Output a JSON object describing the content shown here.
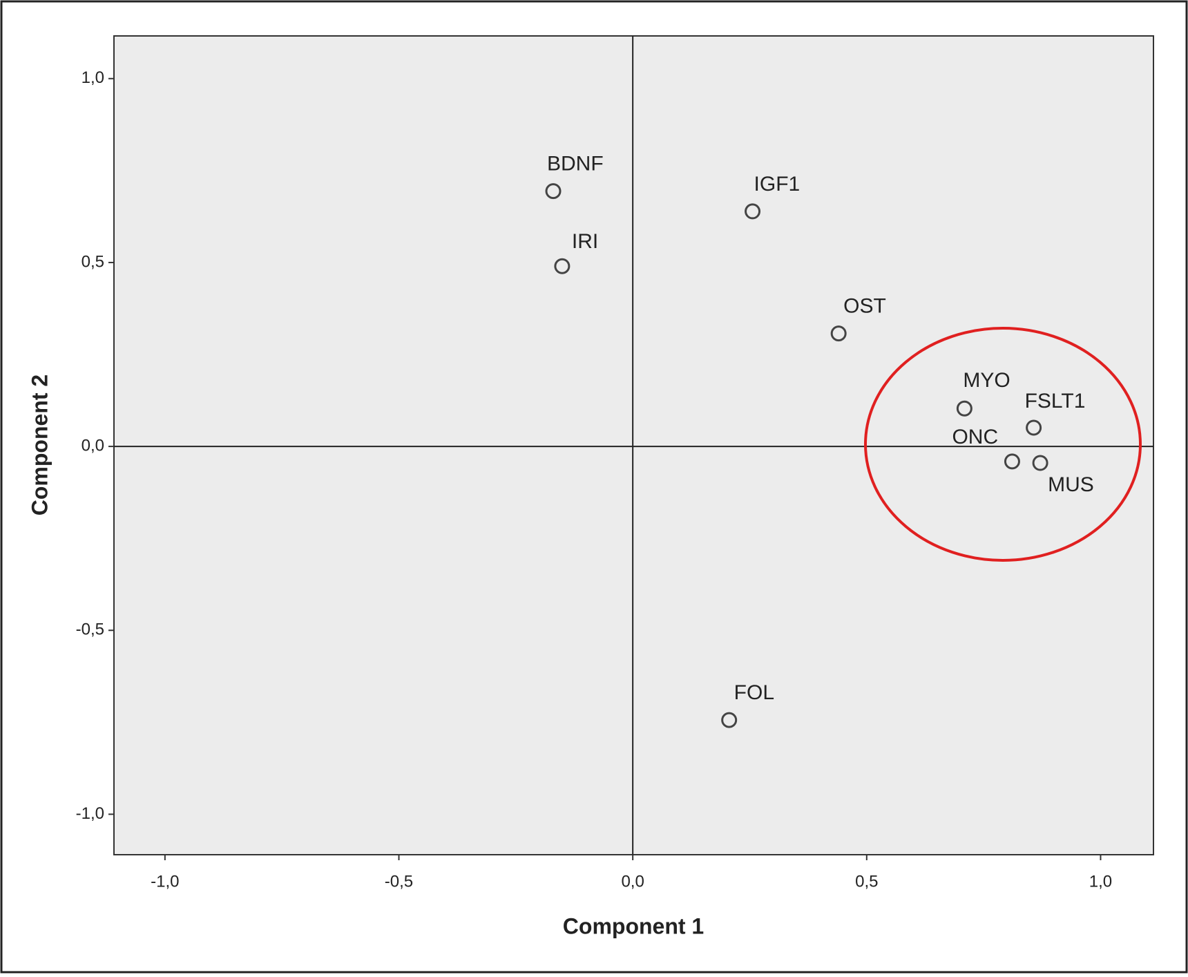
{
  "chart_data": {
    "type": "scatter",
    "x_label": "Component 1",
    "y_label": "Component 2",
    "x": [
      -0.17,
      -0.151,
      0.256,
      0.44,
      0.709,
      0.857,
      0.811,
      0.871,
      0.206
    ],
    "values": [
      0.694,
      0.49,
      0.639,
      0.307,
      0.103,
      0.051,
      -0.041,
      -0.045,
      -0.744
    ],
    "labels": [
      "BDNF",
      "IRI",
      "IGF1",
      "OST",
      "MYO",
      "FSLT1",
      "ONC",
      "MUS",
      "FOL"
    ],
    "xlim": [
      -1.109,
      1.113
    ],
    "ylim": [
      -1.11,
      1.116
    ],
    "xticks": [
      {
        "value": -1.0,
        "label": "-1,0"
      },
      {
        "value": -0.5,
        "label": "-0,5"
      },
      {
        "value": 0,
        "label": "0,0"
      },
      {
        "value": 0.5,
        "label": "0,5"
      },
      {
        "value": 1.0,
        "label": "1,0"
      }
    ],
    "yticks": [
      {
        "value": -1.0,
        "label": "-1,0"
      },
      {
        "value": -0.5,
        "label": "-0,5"
      },
      {
        "value": 0,
        "label": "0,0"
      },
      {
        "value": 0.5,
        "label": "0,5"
      },
      {
        "value": 1.0,
        "label": "1,0"
      }
    ],
    "color": "#444444",
    "background": "#ececec"
  }
}
